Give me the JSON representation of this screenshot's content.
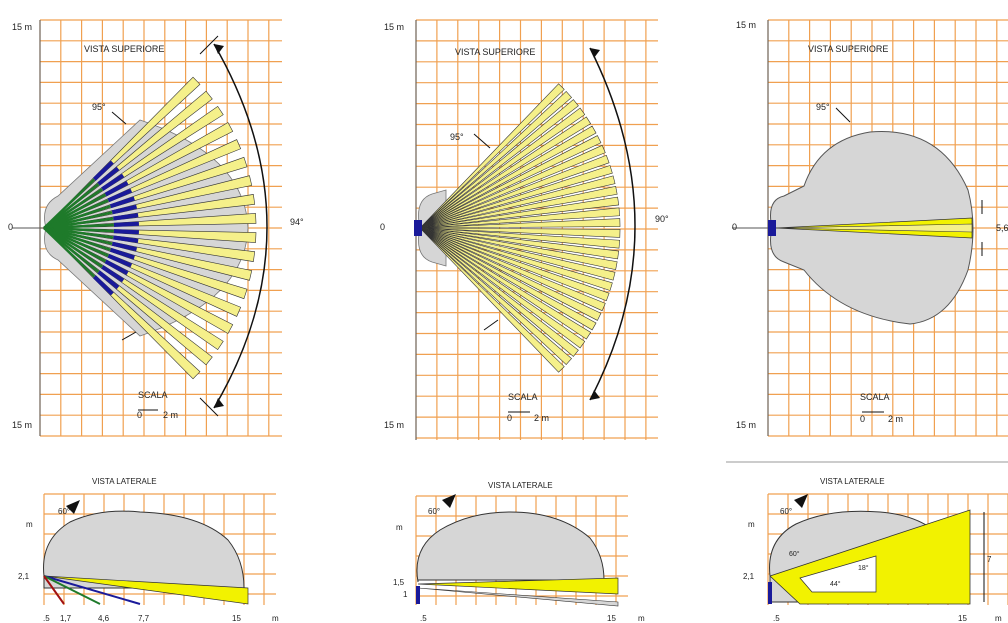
{
  "panels": [
    {
      "top_title": "VISTA SUPERIORE",
      "top_label_15": "15 m",
      "top_label_0": "0",
      "top_label_bottom": "15 m",
      "small_angle": "95°",
      "big_angle": "94°",
      "scala_title": "SCALA",
      "scala_0": "0",
      "scala_2": "2 m",
      "side_title": "VISTA LATERALE",
      "side_angle": "60°",
      "side_m": "m",
      "side_h": "2,1",
      "side_ticks": [
        ".5",
        "1,7",
        "4,6",
        "7,7",
        "15"
      ],
      "side_unit": "m"
    },
    {
      "top_title": "VISTA SUPERIORE",
      "top_label_15": "15 m",
      "top_label_0": "0",
      "top_label_bottom": "15 m",
      "small_angle": "95°",
      "big_angle": "90°",
      "scala_title": "SCALA",
      "scala_0": "0",
      "scala_2": "2 m",
      "side_title": "VISTA LATERALE",
      "side_angle": "60°",
      "side_m": "m",
      "side_h": "1,5",
      "side_h2": "1",
      "side_ticks": [
        ".5",
        "15"
      ],
      "side_unit": "m"
    },
    {
      "top_title": "VISTA SUPERIORE",
      "top_label_15": "15 m",
      "top_label_0": "0",
      "top_label_bottom": "15 m",
      "small_angle": "95°",
      "right_label": "5,6",
      "scala_title": "SCALA",
      "scala_0": "0",
      "scala_2": "2 m",
      "side_title": "VISTA LATERALE",
      "side_angle": "60°",
      "side_angle2": "60°",
      "side_m": "m",
      "side_h": "2,1",
      "side_inner1": "18°",
      "side_inner2": "44°",
      "side_right": "7",
      "side_ticks": [
        ".5",
        "15"
      ],
      "side_unit": "m"
    }
  ],
  "colors": {
    "grid": "#f0a050",
    "beam_fill": "#f5f08a",
    "gray": "#d6d6d6",
    "blue": "#1a1a9a",
    "green": "#1e7a2a",
    "yellow": "#f2f200"
  }
}
